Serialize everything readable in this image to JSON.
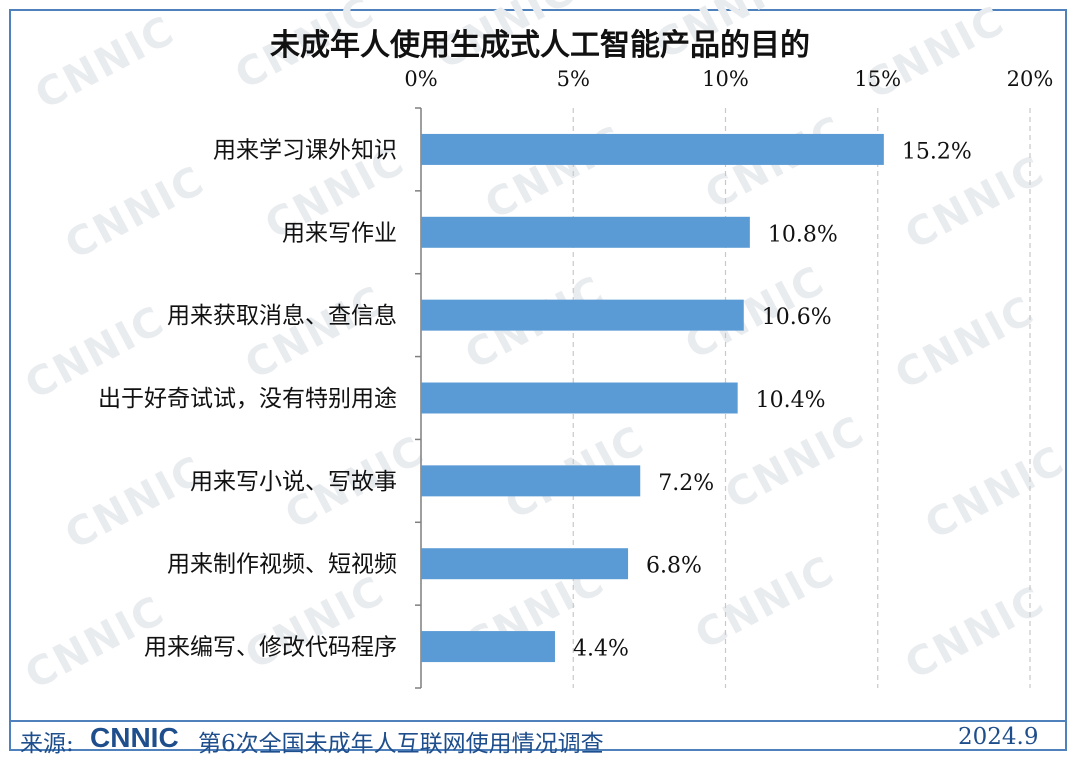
{
  "chart_data": {
    "type": "bar",
    "orientation": "horizontal",
    "title": "未成年人使用生成式人工智能产品的目的",
    "categories": [
      "用来学习课外知识",
      "用来写作业",
      "用来获取消息、查信息",
      "出于好奇试试，没有特别用途",
      "用来写小说、写故事",
      "用来制作视频、短视频",
      "用来编写、修改代码程序"
    ],
    "values": [
      15.2,
      10.8,
      10.6,
      10.4,
      7.2,
      6.8,
      4.4
    ],
    "value_labels": [
      "15.2%",
      "10.8%",
      "10.6%",
      "10.4%",
      "7.2%",
      "6.8%",
      "4.4%"
    ],
    "xlim": [
      0,
      20
    ],
    "xticks": [
      0,
      5,
      10,
      15,
      20
    ],
    "xtick_labels": [
      "0%",
      "5%",
      "10%",
      "15%",
      "20%"
    ],
    "x_axis_position": "top",
    "grid": "vertical-dashed",
    "bar_color": "#5b9bd5"
  },
  "footer": {
    "source_label": "来源:",
    "logo_text": "CNNIC",
    "survey": "第6次全国未成年人互联网使用情况调查",
    "date": "2024.9"
  },
  "watermark_text": "CNNIC"
}
